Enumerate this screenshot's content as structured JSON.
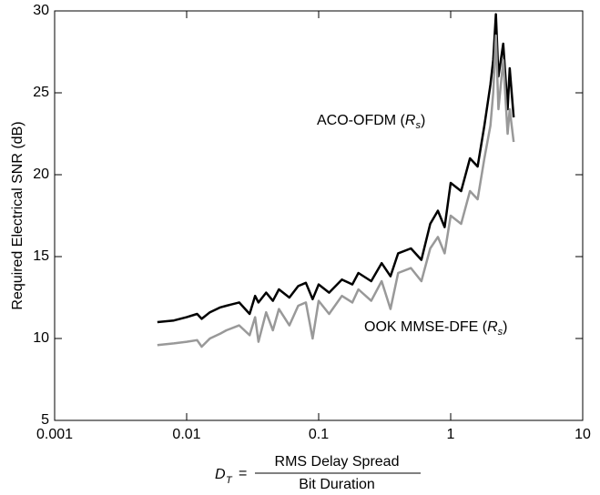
{
  "chart_data": {
    "type": "line",
    "x_label": {
      "symbol": "D",
      "subscript": "T",
      "equals": "=",
      "numerator": "RMS Delay Spread",
      "denominator": "Bit Duration"
    },
    "y_label": "Required Electrical SNR (dB)",
    "annotations": [
      {
        "text": "ACO-OFDM (",
        "italic": "R",
        "subscript": "s",
        "close": ")"
      },
      {
        "text": "OOK MMSE-DFE (",
        "italic": "R",
        "subscript": "s",
        "close": ")"
      }
    ],
    "x": [
      0.006,
      0.008,
      0.01,
      0.012,
      0.013,
      0.015,
      0.018,
      0.02,
      0.025,
      0.03,
      0.033,
      0.035,
      0.04,
      0.045,
      0.05,
      0.06,
      0.07,
      0.08,
      0.09,
      0.1,
      0.12,
      0.15,
      0.18,
      0.2,
      0.25,
      0.3,
      0.35,
      0.4,
      0.5,
      0.6,
      0.7,
      0.8,
      0.9,
      1,
      1.2,
      1.4,
      1.6,
      1.8,
      2,
      2.1,
      2.2,
      2.3,
      2.5,
      2.7,
      2.8,
      3
    ],
    "series": [
      {
        "color": "#000000",
        "values": [
          11,
          11.1,
          11.3,
          11.5,
          11.2,
          11.6,
          11.9,
          12,
          12.2,
          11.5,
          12.6,
          12.2,
          12.8,
          12.3,
          13,
          12.5,
          13.2,
          13.4,
          12.4,
          13.3,
          12.8,
          13.6,
          13.3,
          14,
          13.5,
          14.6,
          13.8,
          15.2,
          15.5,
          14.8,
          17,
          17.8,
          16.8,
          19.5,
          19,
          21,
          20.5,
          23,
          25.5,
          27,
          29.8,
          26,
          28,
          24,
          26.5,
          23.5
        ]
      },
      {
        "color": "#999999",
        "values": [
          9.6,
          9.7,
          9.8,
          9.9,
          9.5,
          10,
          10.3,
          10.5,
          10.8,
          10.2,
          11.3,
          9.8,
          11.6,
          10.5,
          11.8,
          10.8,
          12,
          12.2,
          10,
          12.3,
          11.5,
          12.6,
          12.2,
          13,
          12.3,
          13.5,
          11.8,
          14,
          14.3,
          13.5,
          15.5,
          16.2,
          15.2,
          17.5,
          17,
          19,
          18.5,
          21,
          23,
          25,
          28.5,
          24,
          27,
          22.5,
          24,
          22
        ]
      }
    ],
    "xscale": "log",
    "xlim": [
      0.001,
      10
    ],
    "xticks": [
      0.001,
      0.01,
      0.1,
      1,
      10
    ],
    "ylim": [
      5,
      30
    ],
    "yticks": [
      5,
      10,
      15,
      20,
      25,
      30
    ]
  }
}
